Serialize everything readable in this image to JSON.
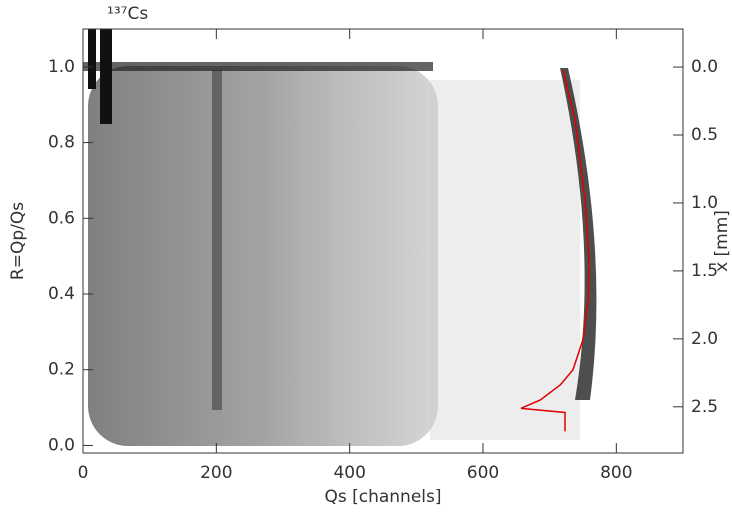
{
  "chart_data": {
    "type": "line",
    "title": "¹³⁷Cs",
    "x_label": "Qs [channels]",
    "y_label": "R=Qp/Qs",
    "y2_label": "x [mm]",
    "color": "#e00000",
    "x": [
      720,
      738,
      753,
      759,
      758,
      750,
      735,
      716,
      686,
      657,
      723,
      723
    ],
    "values": [
      0.992,
      0.86,
      0.65,
      0.49,
      0.385,
      0.28,
      0.2,
      0.16,
      0.12,
      0.098,
      0.087,
      0.037
    ],
    "xlim": [
      0,
      900
    ],
    "xticks": [
      0,
      200,
      400,
      600,
      800
    ],
    "ylim": [
      -0.02,
      1.1
    ],
    "yticks": [
      {
        "value": 0,
        "label": "0.0"
      },
      0.2,
      0.4,
      0.6,
      0.8,
      {
        "value": 1,
        "label": "1.0"
      }
    ],
    "y2lim": [
      2.84,
      -0.28
    ],
    "y2ticks": [
      {
        "value": 0,
        "label": "0.0"
      },
      0.5,
      {
        "value": 1,
        "label": "1.0"
      },
      1.5,
      {
        "value": 2,
        "label": "2.0"
      },
      2.5
    ]
  }
}
